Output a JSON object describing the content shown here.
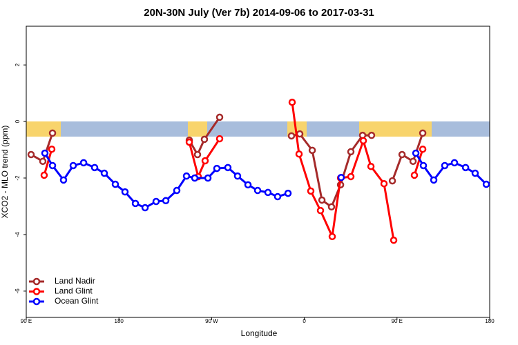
{
  "chart_data": {
    "type": "line",
    "title": "20N-30N July (Ver 7b)   2014-09-06 to 2017-03-31",
    "x_label": "Longitude",
    "y_label": "XCO2 - MLO trend (ppm)",
    "xlim": [
      90,
      540
    ],
    "xticks": [
      {
        "value": 90,
        "label": "90 E"
      },
      180,
      {
        "value": 270,
        "label": "90 W"
      },
      {
        "value": 360,
        "label": "0"
      },
      {
        "value": 450,
        "label": "90 E"
      },
      {
        "value": 540,
        "label": "180"
      }
    ],
    "ylim": [
      -6.93,
      3.37
    ],
    "yticks": [
      2,
      0,
      -2,
      -4,
      -6
    ],
    "legend": "bottom-left",
    "series": [
      {
        "name": "Land Nadir",
        "color": "#a52a2a",
        "x": [
          94.7,
          106.1,
          115.5,
          null,
          248.3,
          256.3,
          263.0,
          277.8,
          null,
          347.5,
          355.6,
          367.7,
          377.1,
          386.4,
          395.2,
          405.2,
          416.6,
          425.3,
          null,
          445.5,
          454.9,
          465.6,
          475.0
        ],
        "values": [
          -1.17,
          -1.41,
          -0.41,
          null,
          -0.66,
          -1.17,
          -0.63,
          0.15,
          null,
          -0.51,
          -0.44,
          -1.02,
          -2.78,
          -3.02,
          -2.24,
          -1.07,
          -0.49,
          -0.49,
          null,
          -2.1,
          -1.17,
          -1.41,
          -0.41
        ]
      },
      {
        "name": "Land Glint",
        "color": "#ff0000",
        "x": [
          107.4,
          114.8,
          null,
          248.3,
          257.0,
          263.7,
          277.8,
          null,
          348.2,
          354.9,
          366.3,
          375.7,
          387.1,
          395.2,
          405.2,
          417.3,
          424.7,
          437.4,
          446.8,
          null,
          466.9,
          475.0
        ],
        "values": [
          -1.9,
          -0.98,
          null,
          -0.73,
          -1.95,
          -1.39,
          -0.61,
          null,
          0.68,
          -1.15,
          -2.46,
          -3.15,
          -4.07,
          -2.0,
          -1.95,
          -0.68,
          -1.59,
          -2.2,
          -4.2,
          null,
          -1.9,
          -0.98
        ]
      },
      {
        "name": "Ocean Glint",
        "color": "#0000ff",
        "x": [
          108.1,
          115.5,
          126.2,
          135.6,
          145.7,
          156.4,
          165.8,
          176.5,
          185.9,
          196.0,
          205.4,
          216.1,
          225.5,
          236.2,
          245.6,
          253.6,
          266.4,
          275.1,
          285.8,
          295.2,
          305.3,
          314.7,
          324.7,
          334.1,
          344.2,
          null,
          395.8,
          null,
          468.3,
          475.6,
          485.7,
          496.4,
          505.8,
          516.6,
          525.9,
          536.7
        ],
        "values": [
          -1.12,
          -1.56,
          -2.07,
          -1.56,
          -1.46,
          -1.63,
          -1.83,
          -2.22,
          -2.49,
          -2.9,
          -3.05,
          -2.83,
          -2.8,
          -2.44,
          -1.93,
          -2.0,
          -2.0,
          -1.66,
          -1.63,
          -1.93,
          -2.24,
          -2.44,
          -2.51,
          -2.66,
          -2.54,
          null,
          -1.98,
          null,
          -1.12,
          -1.56,
          -2.07,
          -1.56,
          -1.46,
          -1.63,
          -1.83,
          -2.22
        ]
      }
    ]
  }
}
